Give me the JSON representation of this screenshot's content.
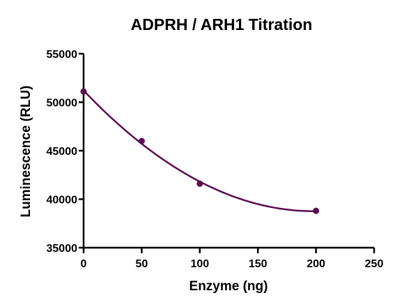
{
  "chart_data": {
    "type": "scatter",
    "title": "ADPRH / ARH1 Titration",
    "xlabel": "Enzyme (ng)",
    "ylabel": "Luminescence (RLU)",
    "xlim": [
      0,
      250
    ],
    "ylim": [
      35000,
      55000
    ],
    "x_ticks": [
      0,
      50,
      100,
      150,
      200,
      250
    ],
    "y_ticks": [
      35000,
      40000,
      45000,
      50000,
      55000
    ],
    "grid": false,
    "legend": null,
    "series": [
      {
        "name": "ADPRH / ARH1",
        "color": "#5c0a52",
        "marker": "circle",
        "x": [
          0,
          50,
          100,
          200
        ],
        "y": [
          51100,
          46000,
          41600,
          38800
        ],
        "fit": "quadratic curve"
      }
    ]
  }
}
